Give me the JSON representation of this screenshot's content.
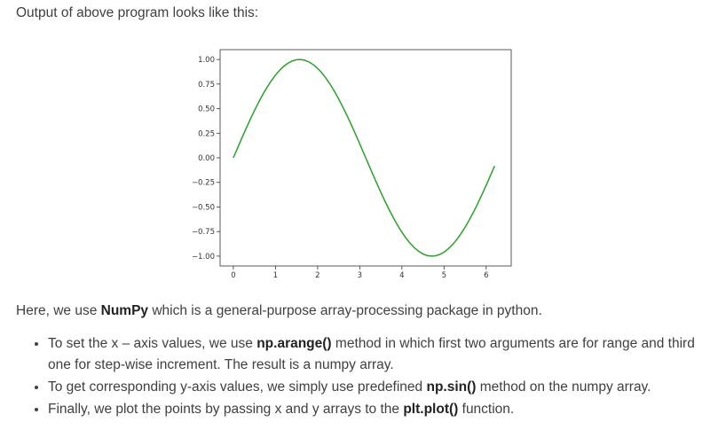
{
  "intro_text": "Output of above program looks like this:",
  "chart_data": {
    "type": "line",
    "title": "",
    "xlabel": "",
    "ylabel": "",
    "xlim": [
      -0.314,
      6.594
    ],
    "ylim": [
      -1.1,
      1.1
    ],
    "x_ticks": [
      0,
      1,
      2,
      3,
      4,
      5,
      6
    ],
    "x_tick_labels": [
      "0",
      "1",
      "2",
      "3",
      "4",
      "5",
      "6"
    ],
    "y_ticks": [
      1.0,
      0.75,
      0.5,
      0.25,
      0.0,
      -0.25,
      -0.5,
      -0.75,
      -1.0
    ],
    "y_tick_labels": [
      "1.00",
      "0.75",
      "0.50",
      "0.25",
      "0.00",
      "−0.25",
      "−0.50",
      "−0.75",
      "−1.00"
    ],
    "grid": false,
    "series": [
      {
        "color": "#2ca02c",
        "function": "sin(x)",
        "x_start": 0,
        "x_stop": 6.28,
        "step": 0.1
      }
    ]
  },
  "paragraph": {
    "prefix": "Here, we use ",
    "bold": "NumPy",
    "suffix": " which is a general-purpose array-processing package in python."
  },
  "bullets": [
    {
      "prefix": "To set the x – axis values, we use ",
      "bold": "np.arange()",
      "suffix": " method in which first two arguments are for range and third one for step-wise increment. The result is a numpy array."
    },
    {
      "prefix": "To get corresponding y-axis values, we simply use predefined ",
      "bold": "np.sin()",
      "suffix": " method on the numpy array."
    },
    {
      "prefix": "Finally, we plot the points by passing x and y arrays to the ",
      "bold": "plt.plot()",
      "suffix": " function."
    }
  ]
}
